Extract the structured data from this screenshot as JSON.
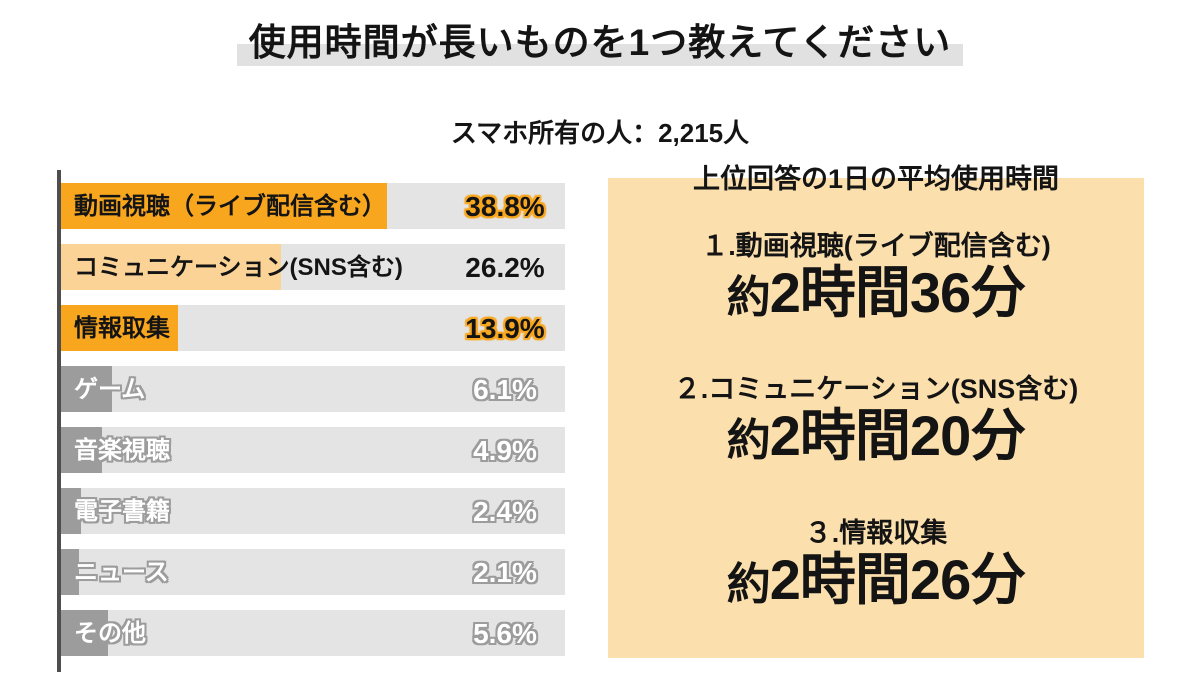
{
  "title": "使用時間が長いものを1つ教えてください",
  "subtitle": "スマホ所有の人：2,215人",
  "chart_data": {
    "type": "bar",
    "orientation": "horizontal",
    "title": "使用時間が長いものを1つ教えてください",
    "subtitle": "スマホ所有の人：2,215人",
    "unit": "%",
    "axis_max": 60,
    "grid": false,
    "legend": "none",
    "categories": [
      "動画視聴（ライブ配信含む）",
      "コミュニケーション(SNS含む)",
      "情報取集",
      "ゲーム",
      "音楽視聴",
      "電子書籍",
      "ニュース",
      "その他"
    ],
    "values": [
      38.8,
      26.2,
      13.9,
      6.1,
      4.9,
      2.4,
      2.1,
      5.6
    ],
    "rows": [
      {
        "label": "動画視聴（ライブ配信含む）",
        "value": 38.8,
        "display": "38.8%",
        "style": "orange",
        "glow": true
      },
      {
        "label": "コミュニケーション(SNS含む)",
        "value": 26.2,
        "display": "26.2%",
        "style": "peach",
        "glow": false
      },
      {
        "label": "情報取集",
        "value": 13.9,
        "display": "13.9%",
        "style": "orange",
        "glow": true
      },
      {
        "label": "ゲーム",
        "value": 6.1,
        "display": "6.1%",
        "style": "gray",
        "glow": false
      },
      {
        "label": "音楽視聴",
        "value": 4.9,
        "display": "4.9%",
        "style": "gray",
        "glow": false
      },
      {
        "label": "電子書籍",
        "value": 2.4,
        "display": "2.4%",
        "style": "gray",
        "glow": false
      },
      {
        "label": "ニュース",
        "value": 2.1,
        "display": "2.1%",
        "style": "gray",
        "glow": false
      },
      {
        "label": "その他",
        "value": 5.6,
        "display": "5.6%",
        "style": "gray",
        "glow": false
      }
    ]
  },
  "panel": {
    "title": "上位回答の1日の平均使用時間",
    "items": [
      {
        "rank_label": "１.動画視聴(ライブ配信含む)",
        "time_prefix": "約",
        "time": "2時間36分"
      },
      {
        "rank_label": "２.コミュニケーション(SNS含む)",
        "time_prefix": "約",
        "time": "2時間20分"
      },
      {
        "rank_label": "３.情報収集",
        "time_prefix": "約",
        "time": "2時間26分"
      }
    ]
  },
  "colors": {
    "accent_orange": "#F7A61E",
    "accent_peach": "#FBD396",
    "bar_gray": "#9C9C9C",
    "track_gray": "#E4E4E4",
    "title_band_gray": "#E1E1E1",
    "panel_beige": "#FBDFAD",
    "text_black": "#141414",
    "axis_dark": "#4E4E4E"
  }
}
